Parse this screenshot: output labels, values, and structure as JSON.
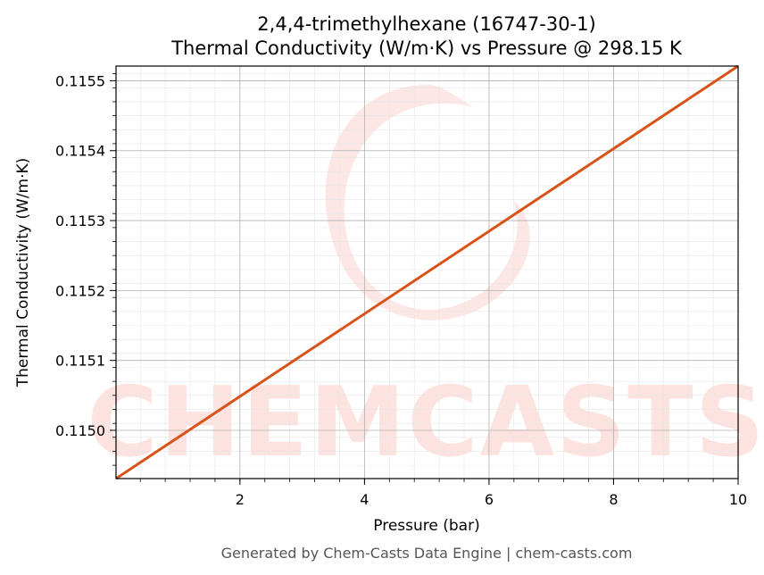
{
  "chart_data": {
    "type": "line",
    "title": "2,4,4-trimethylhexane (16747-30-1)",
    "subtitle": "Thermal Conductivity (W/m·K) vs Pressure @ 298.15 K",
    "xlabel": "Pressure (bar)",
    "ylabel": "Thermal Conductivity (W/m·K)",
    "xlim": [
      0.01,
      10
    ],
    "ylim": [
      0.114931,
      0.115521
    ],
    "x_ticks": [
      2,
      4,
      6,
      8,
      10
    ],
    "y_ticks": [
      0.115,
      0.1151,
      0.1152,
      0.1153,
      0.1154,
      0.1155
    ],
    "x_tick_labels": [
      "2",
      "4",
      "6",
      "8",
      "10"
    ],
    "y_tick_labels": [
      "0.1150",
      "0.1151",
      "0.1152",
      "0.1153",
      "0.1154",
      "0.1155"
    ],
    "grid": true,
    "series": [
      {
        "color": "#d95319",
        "x": [
          0.01,
          10
        ],
        "y": [
          0.114931,
          0.115521
        ]
      }
    ]
  },
  "watermark": {
    "text": "CHEMCASTS",
    "color": "#fde3e0"
  },
  "footer": "Generated by Chem-Casts Data Engine | chem-casts.com"
}
